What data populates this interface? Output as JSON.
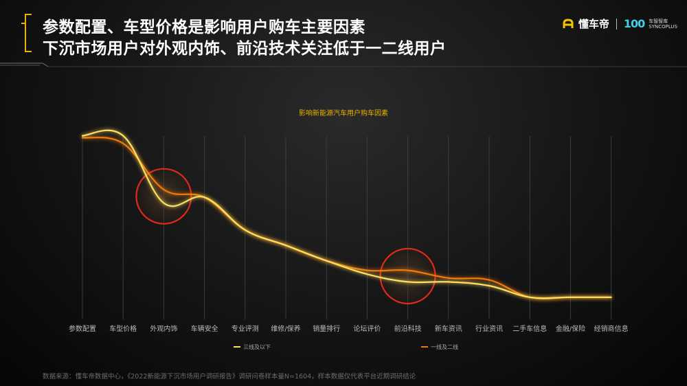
{
  "header": {
    "title_line1": "参数配置、车型价格是影响用户购车主要因素",
    "title_line2": "下沉市场用户对外观内饰、前沿技术关注低于一二线用户"
  },
  "brand": {
    "logo_icon": "dcd-logo-icon",
    "name": "懂车帝",
    "badge": "100",
    "badge_sub1": "车智智库",
    "badge_sub2": "SYNCOPLUS"
  },
  "colors": {
    "tier3": "#ffe060",
    "tier12": "#f07810",
    "highlight": "#e02a1a",
    "title_accent": "#e8b400"
  },
  "chart_data": {
    "type": "line",
    "title": "影响新能源汽车用户购车因素",
    "categories": [
      "参数配置",
      "车型价格",
      "外观内饰",
      "车辆安全",
      "专业评测",
      "维修/保养",
      "销量排行",
      "论坛评价",
      "前沿科技",
      "新车资讯",
      "行业资讯",
      "二手车信息",
      "金融/保险",
      "经销商信息"
    ],
    "series": [
      {
        "name": "三线及以下",
        "values": [
          0.93,
          0.93,
          0.58,
          0.61,
          0.44,
          0.36,
          0.28,
          0.21,
          0.17,
          0.17,
          0.15,
          0.09,
          0.09,
          0.09
        ]
      },
      {
        "name": "一线及二线",
        "values": [
          0.92,
          0.89,
          0.65,
          0.61,
          0.44,
          0.36,
          0.28,
          0.23,
          0.23,
          0.19,
          0.18,
          0.09,
          0.09,
          0.09
        ]
      }
    ],
    "ylim": [
      0,
      1
    ],
    "highlights": [
      "外观内饰",
      "前沿科技"
    ],
    "legend_position": "bottom",
    "grid": "vertical"
  },
  "footer": {
    "source": "数据来源：懂车帝数据中心，《2022新能源下沉市场用户调研报告》调研问卷样本量N=1604，样本数据仅代表平台近期调研结论"
  }
}
